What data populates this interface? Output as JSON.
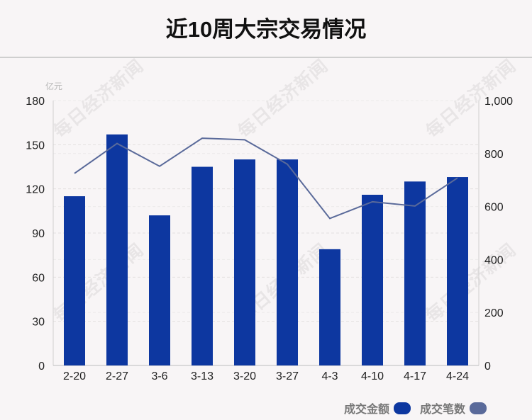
{
  "title": "近10周大宗交易情况",
  "watermark": "每日经济新闻",
  "chart_data": {
    "type": "bar",
    "categories": [
      "2-20",
      "2-27",
      "3-6",
      "3-13",
      "3-20",
      "3-27",
      "4-3",
      "4-10",
      "4-17",
      "4-24"
    ],
    "series": [
      {
        "name": "成交金额",
        "type": "bar",
        "axis": "left",
        "color": "#0d37a0",
        "values": [
          115,
          157,
          102,
          135,
          140,
          140,
          79,
          116,
          125,
          128
        ]
      },
      {
        "name": "成交笔数",
        "type": "line",
        "axis": "right",
        "color": "#5a6a9a",
        "values": [
          725,
          838,
          752,
          858,
          852,
          760,
          555,
          618,
          602,
          708
        ]
      }
    ],
    "ylabel": "亿元",
    "ylim": [
      0,
      180
    ],
    "yticks": [
      0,
      30,
      60,
      90,
      120,
      150,
      180
    ],
    "ytick_labels": [
      "0",
      "30",
      "60",
      "90",
      "120",
      "150",
      "180"
    ],
    "y2lim": [
      0,
      1000
    ],
    "y2ticks": [
      0,
      200,
      400,
      600,
      800,
      1000
    ],
    "y2tick_labels": [
      "0",
      "200",
      "400",
      "600",
      "800",
      "1,000"
    ],
    "grid": "dashed-horizontal",
    "legend_position": "bottom-right"
  }
}
